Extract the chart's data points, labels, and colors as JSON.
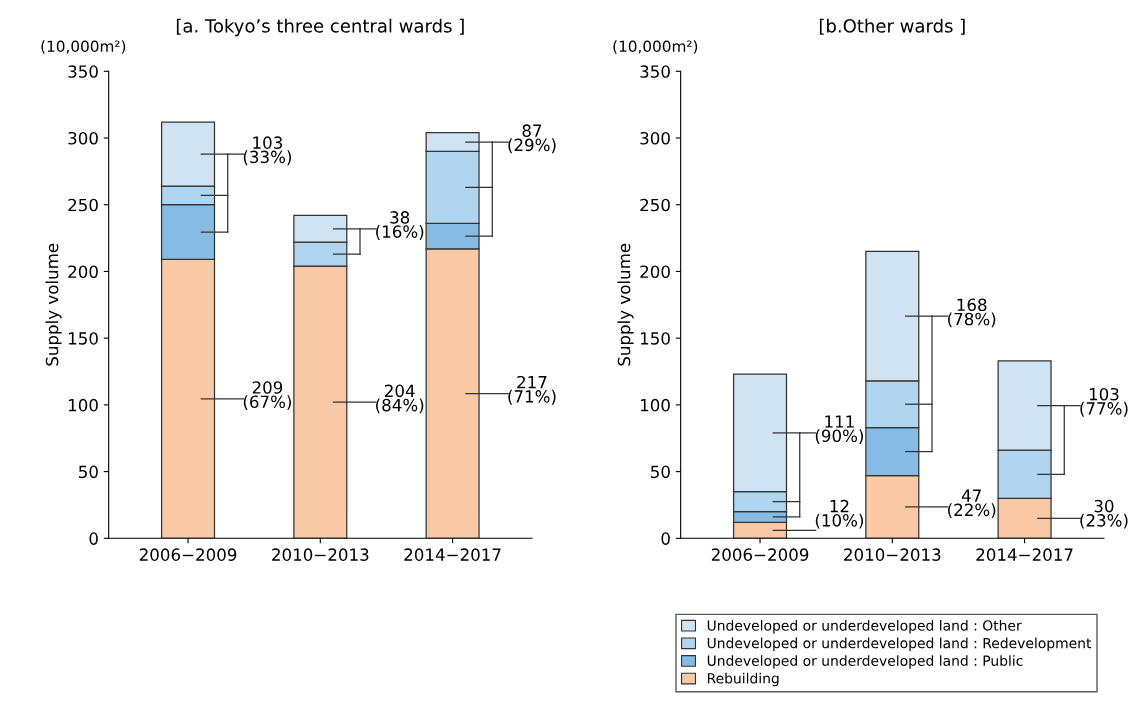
{
  "chart_data": [
    {
      "type": "bar",
      "title": "[a. Tokyo’s three central wards ]",
      "ylabel": "Supply volume",
      "stacked": true,
      "grid": false,
      "categories": [
        "2006−2009",
        "2010−2013",
        "2014−2017"
      ],
      "ylim": [
        0,
        350
      ],
      "yticks": [
        0,
        50,
        100,
        150,
        200,
        250,
        300,
        350
      ],
      "series": [
        {
          "color": "#f9c8a5",
          "values": [
            209,
            204,
            217
          ]
        },
        {
          "color": "#87bbe4",
          "values": [
            41,
            0,
            19
          ]
        },
        {
          "color": "#b1d5ee",
          "values": [
            14,
            18,
            54
          ]
        },
        {
          "color": "#cfe3f3",
          "values": [
            48,
            20,
            14
          ]
        }
      ],
      "annotations": [
        "(10,000m²)",
        "209\n(67%)",
        "103\n(33%)",
        "204\n(84%)",
        "38\n(16%)",
        "217\n(71%)",
        "87\n(29%)"
      ]
    },
    {
      "type": "bar",
      "title": "[b.Other wards ]",
      "ylabel": "Supply volume",
      "stacked": true,
      "legend": "bottom",
      "grid": false,
      "categories": [
        "2006−2009",
        "2010−2013",
        "2014−2017"
      ],
      "ylim": [
        0,
        350
      ],
      "yticks": [
        0,
        50,
        100,
        150,
        200,
        250,
        300,
        350
      ],
      "series": [
        {
          "name": "Rebuilding",
          "color": "#f9c8a5",
          "values": [
            12,
            47,
            30
          ]
        },
        {
          "name": "Undeveloped or underdeveloped land : Public",
          "color": "#87bbe4",
          "values": [
            8,
            36,
            0
          ]
        },
        {
          "name": "Undeveloped or underdeveloped land : Redevelopment",
          "color": "#b1d5ee",
          "values": [
            15,
            35,
            36
          ]
        },
        {
          "name": "Undeveloped or underdeveloped land : Other",
          "color": "#cfe3f3",
          "values": [
            88,
            97,
            67
          ]
        }
      ],
      "annotations": [
        "(10,000m²)",
        "12\n(10%)",
        "111\n(90%)",
        "47\n(22%)",
        "168\n(78%)",
        "30\n(23%)",
        "103\n(77%)"
      ]
    }
  ]
}
